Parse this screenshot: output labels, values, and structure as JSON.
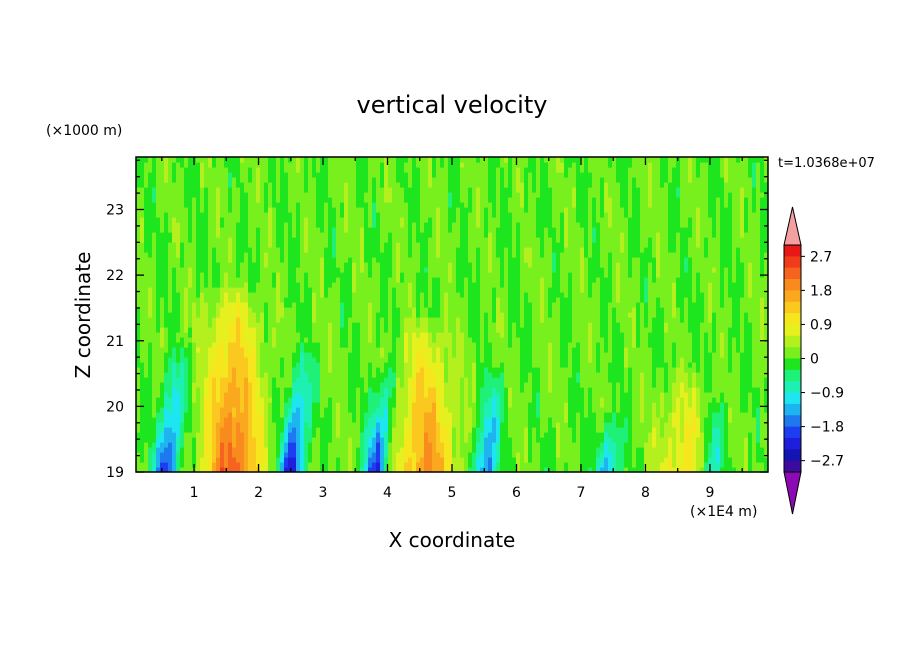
{
  "chart_data": {
    "type": "heatmap",
    "title": "vertical velocity",
    "xlabel": "X coordinate",
    "ylabel": "Z coordinate",
    "x_unit": "(×1E4 m)",
    "y_unit": "(×1000 m)",
    "time_label": "t=1.0368e+07",
    "xlim": [
      0.1,
      9.9
    ],
    "ylim": [
      19.0,
      23.8
    ],
    "x_ticks": [
      1,
      2,
      3,
      4,
      5,
      6,
      7,
      8,
      9
    ],
    "y_ticks": [
      19,
      20,
      21,
      22,
      23
    ],
    "colorbar": {
      "tick_labels": [
        "2.7",
        "1.8",
        "0.9",
        "0",
        "−0.9",
        "−1.8",
        "−2.7"
      ],
      "tick_values": [
        2.7,
        1.8,
        0.9,
        0,
        -0.9,
        -1.8,
        -2.7
      ],
      "levels": [
        3.0,
        2.7,
        2.4,
        2.1,
        1.8,
        1.5,
        1.2,
        0.9,
        0.6,
        0.3,
        0.0,
        -0.3,
        -0.6,
        -0.9,
        -1.2,
        -1.5,
        -1.8,
        -2.1,
        -2.4,
        -2.7,
        -3.0
      ],
      "colors": [
        "#e81818",
        "#f03c1a",
        "#f5641e",
        "#f88a1e",
        "#faa81e",
        "#fac81e",
        "#f5e61e",
        "#e6f01e",
        "#b4f01e",
        "#78f01e",
        "#1ee61e",
        "#1ef078",
        "#1ef0b4",
        "#1ee6f0",
        "#1eb4f0",
        "#1e78f0",
        "#1e3cf0",
        "#1e1edc",
        "#1414b4",
        "#3c0a9c"
      ],
      "over_color": "#f4a0a0",
      "under_color": "#8c0ab4"
    },
    "features": [
      {
        "kind": "downdraft",
        "x": 0.55,
        "z_top": 21.0,
        "w": -2.4
      },
      {
        "kind": "updraft",
        "x": 1.6,
        "z_top": 21.9,
        "w": 2.4
      },
      {
        "kind": "downdraft",
        "x": 2.5,
        "z_top": 21.0,
        "w": -2.6
      },
      {
        "kind": "downdraft",
        "x": 3.8,
        "z_top": 20.8,
        "w": -2.3
      },
      {
        "kind": "updraft",
        "x": 4.6,
        "z_top": 21.4,
        "w": 1.9
      },
      {
        "kind": "downdraft",
        "x": 5.5,
        "z_top": 20.7,
        "w": -2.0
      },
      {
        "kind": "downdraft",
        "x": 7.4,
        "z_top": 20.0,
        "w": -1.8
      },
      {
        "kind": "updraft",
        "x": 8.6,
        "z_top": 20.6,
        "w": 1.1
      },
      {
        "kind": "downdraft",
        "x": 9.0,
        "z_top": 20.2,
        "w": -1.5
      }
    ]
  }
}
